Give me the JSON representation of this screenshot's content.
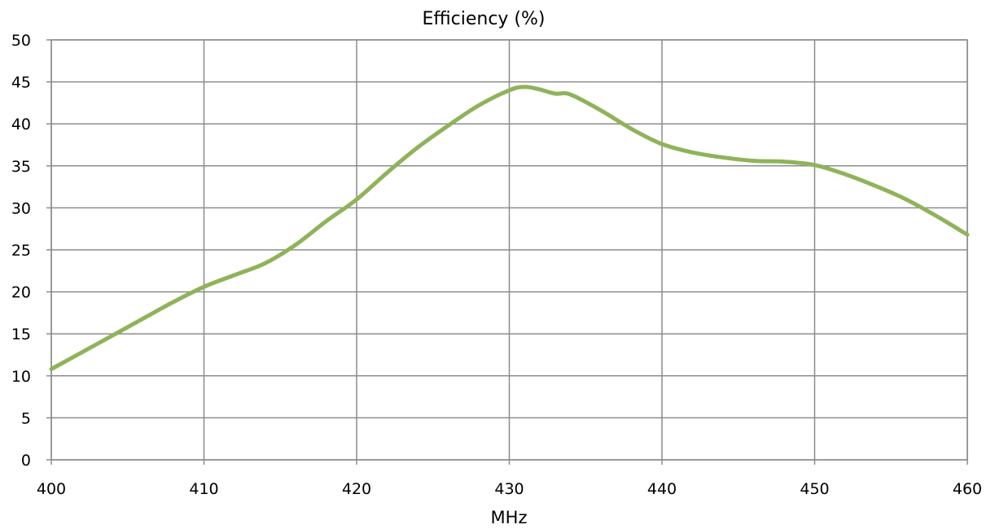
{
  "chart_data": {
    "type": "line",
    "title": "Efficiency (%)",
    "xlabel": "MHz",
    "ylabel": "",
    "xlim": [
      400,
      460
    ],
    "ylim": [
      0,
      50
    ],
    "xticks": [
      400,
      410,
      420,
      430,
      440,
      450,
      460
    ],
    "yticks": [
      0,
      5,
      10,
      15,
      20,
      25,
      30,
      35,
      40,
      45,
      50
    ],
    "grid": true,
    "legend": "none",
    "series": [
      {
        "color": "#8fb35a",
        "points": [
          [
            400,
            10.8
          ],
          [
            402,
            12.8
          ],
          [
            404,
            14.8
          ],
          [
            406,
            16.8
          ],
          [
            408,
            18.8
          ],
          [
            410,
            20.6
          ],
          [
            412,
            22.0
          ],
          [
            414,
            23.4
          ],
          [
            416,
            25.6
          ],
          [
            418,
            28.4
          ],
          [
            420,
            31.0
          ],
          [
            422,
            34.2
          ],
          [
            424,
            37.2
          ],
          [
            426,
            39.8
          ],
          [
            428,
            42.2
          ],
          [
            430,
            44.0
          ],
          [
            431,
            44.4
          ],
          [
            432,
            44.1
          ],
          [
            433,
            43.6
          ],
          [
            434,
            43.5
          ],
          [
            436,
            41.6
          ],
          [
            438,
            39.4
          ],
          [
            440,
            37.6
          ],
          [
            442,
            36.6
          ],
          [
            444,
            36.0
          ],
          [
            446,
            35.6
          ],
          [
            448,
            35.5
          ],
          [
            450,
            35.1
          ],
          [
            452,
            34.0
          ],
          [
            454,
            32.6
          ],
          [
            456,
            31.0
          ],
          [
            458,
            29.0
          ],
          [
            460,
            26.8
          ]
        ]
      }
    ]
  }
}
